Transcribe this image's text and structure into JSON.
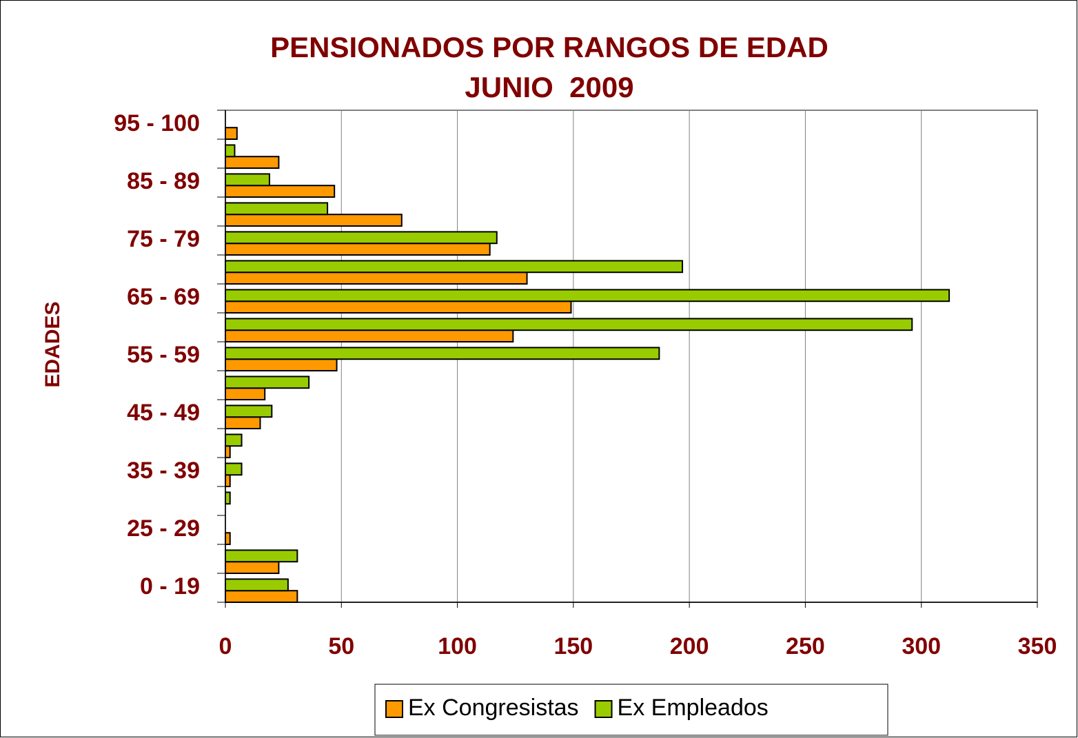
{
  "chart_data": {
    "type": "hbar",
    "title": "PENSIONADOS POR RANGOS DE EDAD",
    "subtitle": "JUNIO  2009",
    "y_label": "EDADES",
    "categories": [
      "0 - 19",
      null,
      "25 - 29",
      null,
      "35 - 39",
      null,
      "45 - 49",
      null,
      "55 - 59",
      null,
      "65 - 69",
      null,
      "75 - 79",
      null,
      "85 - 89",
      null,
      "95 - 100"
    ],
    "series": [
      {
        "name": "Ex Congresistas",
        "color": "#ff9900",
        "values": [
          31,
          23,
          2,
          0,
          2,
          2,
          15,
          17,
          48,
          124,
          149,
          130,
          114,
          76,
          47,
          23,
          5
        ]
      },
      {
        "name": "Ex Empleados",
        "color": "#99cc00",
        "values": [
          27,
          31,
          0,
          2,
          7,
          7,
          20,
          36,
          187,
          296,
          312,
          197,
          117,
          44,
          19,
          4,
          0
        ]
      }
    ],
    "xlim": [
      0,
      350
    ],
    "xticks": [
      0,
      50,
      100,
      150,
      200,
      250,
      300,
      350
    ],
    "grid": true,
    "legend": "bottom"
  }
}
